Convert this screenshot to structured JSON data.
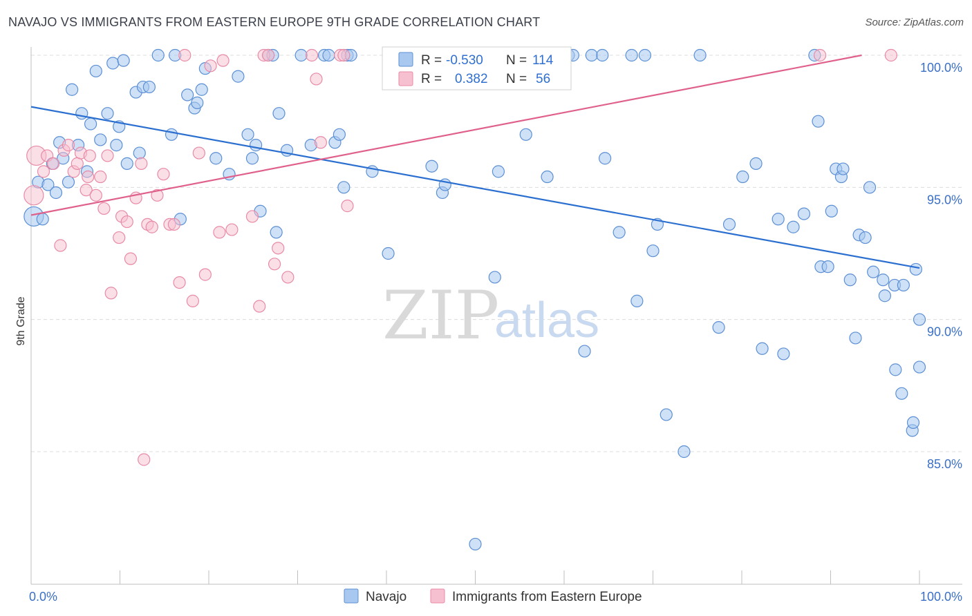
{
  "title": "NAVAJO VS IMMIGRANTS FROM EASTERN EUROPE 9TH GRADE CORRELATION CHART",
  "source": "Source: ZipAtlas.com",
  "watermark": {
    "zip": "ZIP",
    "atlas": "atlas"
  },
  "stats": {
    "r_label": "R =",
    "n_label": "N =",
    "navajo": {
      "r": "-0.530",
      "n": "114"
    },
    "immigrants": {
      "r": "0.382",
      "n": "56"
    }
  },
  "colors": {
    "navajo_fill": "#a8c8f0",
    "navajo_stroke": "#5b8fd4",
    "navajo_line": "#2a6fd0",
    "imm_fill": "#f7c0d0",
    "imm_stroke": "#e88aa6",
    "imm_line": "#e0608c",
    "grid": "#dcdcdc",
    "tick_text": "#3a6fc4"
  },
  "chart_data": {
    "type": "scatter",
    "title": "NAVAJO VS IMMIGRANTS FROM EASTERN EUROPE 9TH GRADE CORRELATION CHART",
    "xlabel": "",
    "ylabel": "9th Grade",
    "xlim": [
      0,
      100
    ],
    "ylim": [
      80.5,
      101.5
    ],
    "x_tick_labels": [
      "0.0%",
      "100.0%"
    ],
    "y_ticks": [
      85,
      90,
      95,
      100
    ],
    "y_tick_labels": [
      "85.0%",
      "90.0%",
      "95.0%",
      "100.0%"
    ],
    "grid": true,
    "legend_position": "bottom-center",
    "series": [
      {
        "name": "Navajo",
        "trend": {
          "x": [
            0,
            100
          ],
          "y": [
            98.05,
            91.95
          ]
        },
        "points": [
          [
            0.3,
            93.9
          ],
          [
            0.8,
            95.2
          ],
          [
            1.3,
            93.8
          ],
          [
            1.9,
            95.1
          ],
          [
            2.4,
            95.9
          ],
          [
            2.8,
            94.8
          ],
          [
            3.2,
            96.7
          ],
          [
            3.6,
            96.1
          ],
          [
            4.2,
            95.2
          ],
          [
            4.6,
            98.7
          ],
          [
            5.3,
            96.6
          ],
          [
            5.7,
            97.8
          ],
          [
            6.3,
            95.6
          ],
          [
            6.7,
            97.4
          ],
          [
            7.3,
            99.4
          ],
          [
            7.8,
            96.8
          ],
          [
            8.6,
            97.8
          ],
          [
            9.2,
            99.7
          ],
          [
            9.6,
            96.6
          ],
          [
            9.9,
            97.3
          ],
          [
            10.4,
            99.8
          ],
          [
            10.8,
            95.9
          ],
          [
            11.8,
            98.6
          ],
          [
            12.2,
            96.3
          ],
          [
            12.6,
            98.8
          ],
          [
            13.3,
            98.8
          ],
          [
            14.3,
            100.0
          ],
          [
            15.8,
            97.0
          ],
          [
            16.2,
            100.0
          ],
          [
            16.8,
            93.8
          ],
          [
            17.6,
            98.5
          ],
          [
            18.4,
            98.0
          ],
          [
            18.7,
            98.2
          ],
          [
            19.2,
            98.7
          ],
          [
            19.6,
            99.5
          ],
          [
            20.8,
            96.1
          ],
          [
            22.3,
            95.5
          ],
          [
            23.3,
            99.2
          ],
          [
            24.4,
            97.0
          ],
          [
            24.9,
            96.1
          ],
          [
            25.3,
            96.6
          ],
          [
            25.8,
            94.1
          ],
          [
            26.7,
            100.0
          ],
          [
            27.2,
            100.0
          ],
          [
            27.6,
            93.3
          ],
          [
            27.9,
            97.8
          ],
          [
            28.8,
            96.4
          ],
          [
            30.4,
            100.0
          ],
          [
            31.5,
            96.6
          ],
          [
            33.0,
            100.0
          ],
          [
            33.5,
            100.0
          ],
          [
            34.2,
            96.7
          ],
          [
            34.7,
            97.0
          ],
          [
            35.2,
            95.0
          ],
          [
            35.6,
            100.0
          ],
          [
            36.0,
            100.0
          ],
          [
            38.4,
            95.6
          ],
          [
            40.2,
            92.5
          ],
          [
            45.1,
            95.8
          ],
          [
            46.3,
            94.8
          ],
          [
            46.6,
            95.1
          ],
          [
            50.0,
            81.5
          ],
          [
            52.2,
            91.6
          ],
          [
            52.6,
            95.6
          ],
          [
            55.7,
            97.0
          ],
          [
            58.1,
            95.4
          ],
          [
            60.5,
            100.0
          ],
          [
            61.0,
            100.0
          ],
          [
            62.3,
            88.8
          ],
          [
            63.1,
            100.0
          ],
          [
            64.3,
            100.0
          ],
          [
            64.6,
            96.1
          ],
          [
            66.2,
            93.3
          ],
          [
            67.6,
            100.0
          ],
          [
            68.2,
            90.7
          ],
          [
            69.1,
            100.0
          ],
          [
            70.0,
            92.6
          ],
          [
            70.5,
            93.6
          ],
          [
            71.5,
            86.4
          ],
          [
            73.5,
            85.0
          ],
          [
            75.3,
            100.0
          ],
          [
            77.4,
            89.7
          ],
          [
            78.6,
            93.6
          ],
          [
            80.1,
            95.4
          ],
          [
            81.6,
            95.9
          ],
          [
            82.3,
            88.9
          ],
          [
            84.1,
            93.8
          ],
          [
            84.7,
            88.7
          ],
          [
            85.8,
            93.5
          ],
          [
            87.0,
            94.0
          ],
          [
            88.2,
            100.0
          ],
          [
            88.6,
            97.5
          ],
          [
            88.9,
            92.0
          ],
          [
            89.7,
            92.0
          ],
          [
            90.1,
            94.1
          ],
          [
            90.6,
            95.7
          ],
          [
            91.2,
            95.4
          ],
          [
            91.4,
            95.7
          ],
          [
            92.2,
            91.5
          ],
          [
            92.8,
            89.3
          ],
          [
            93.2,
            93.2
          ],
          [
            93.9,
            93.1
          ],
          [
            94.4,
            95.0
          ],
          [
            94.8,
            91.8
          ],
          [
            95.9,
            91.5
          ],
          [
            96.1,
            90.9
          ],
          [
            97.2,
            91.3
          ],
          [
            97.3,
            88.1
          ],
          [
            98.0,
            87.2
          ],
          [
            98.2,
            91.3
          ],
          [
            99.2,
            85.8
          ],
          [
            99.3,
            86.1
          ],
          [
            99.6,
            91.9
          ],
          [
            100.0,
            90.0
          ],
          [
            100.0,
            88.2
          ]
        ]
      },
      {
        "name": "Immigrants from Eastern Europe",
        "trend": {
          "x": [
            0,
            93.5
          ],
          "y": [
            93.95,
            100.0
          ]
        },
        "points": [
          [
            0.3,
            94.7
          ],
          [
            0.6,
            96.2
          ],
          [
            1.4,
            95.6
          ],
          [
            1.8,
            96.2
          ],
          [
            2.5,
            95.9
          ],
          [
            3.3,
            92.8
          ],
          [
            3.7,
            96.4
          ],
          [
            4.2,
            96.6
          ],
          [
            4.8,
            95.6
          ],
          [
            5.2,
            95.9
          ],
          [
            5.6,
            96.3
          ],
          [
            6.2,
            94.9
          ],
          [
            6.4,
            95.4
          ],
          [
            6.6,
            96.2
          ],
          [
            7.3,
            94.7
          ],
          [
            7.8,
            95.4
          ],
          [
            8.2,
            94.2
          ],
          [
            8.6,
            96.2
          ],
          [
            9.0,
            91.0
          ],
          [
            9.9,
            93.1
          ],
          [
            10.2,
            93.9
          ],
          [
            10.8,
            93.7
          ],
          [
            11.2,
            92.3
          ],
          [
            11.8,
            94.6
          ],
          [
            12.4,
            95.9
          ],
          [
            12.7,
            84.7
          ],
          [
            13.1,
            93.6
          ],
          [
            13.6,
            93.5
          ],
          [
            14.2,
            94.7
          ],
          [
            14.9,
            95.5
          ],
          [
            15.6,
            93.6
          ],
          [
            16.1,
            93.6
          ],
          [
            16.7,
            91.4
          ],
          [
            17.3,
            100.0
          ],
          [
            18.2,
            90.7
          ],
          [
            18.9,
            96.3
          ],
          [
            19.6,
            91.7
          ],
          [
            20.2,
            99.6
          ],
          [
            21.2,
            93.3
          ],
          [
            21.6,
            99.8
          ],
          [
            22.6,
            93.4
          ],
          [
            24.9,
            93.9
          ],
          [
            25.7,
            90.5
          ],
          [
            26.2,
            100.0
          ],
          [
            26.7,
            100.0
          ],
          [
            27.4,
            92.1
          ],
          [
            27.8,
            92.7
          ],
          [
            28.9,
            91.6
          ],
          [
            31.6,
            100.0
          ],
          [
            32.1,
            99.1
          ],
          [
            32.6,
            96.7
          ],
          [
            34.8,
            100.0
          ],
          [
            35.2,
            100.0
          ],
          [
            35.6,
            94.3
          ],
          [
            88.8,
            100.0
          ],
          [
            96.8,
            100.0
          ]
        ]
      }
    ]
  }
}
